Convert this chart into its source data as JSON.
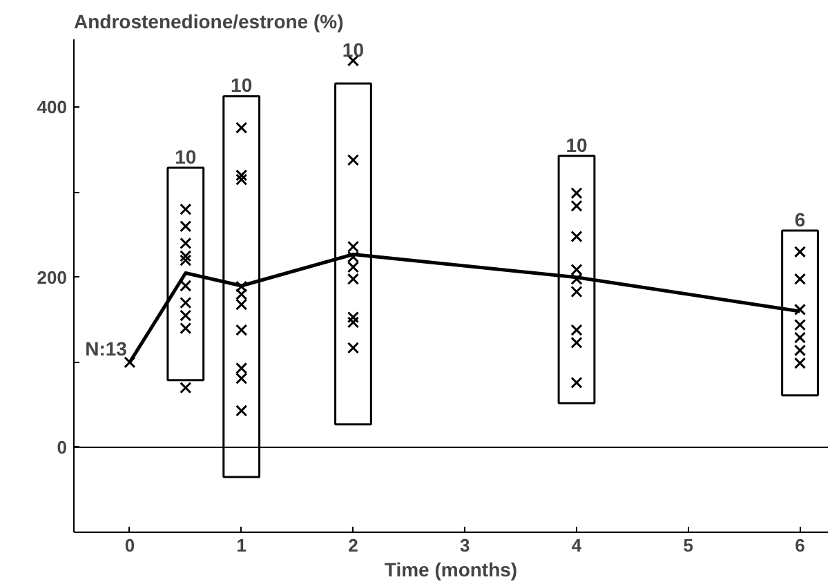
{
  "chart_data": {
    "type": "scatter",
    "ylabel": "Androstenedione/estrone (%)",
    "xlabel": "Time (months)",
    "xlim": [
      -0.5,
      6.25
    ],
    "xticks": [
      0,
      1,
      2,
      3,
      4,
      5,
      6
    ],
    "ylim": [
      -100,
      480
    ],
    "yticks": [
      {
        "value": -100,
        "label": null
      },
      0,
      {
        "value": 100,
        "label": null
      },
      200,
      {
        "value": 300,
        "label": null
      },
      400
    ],
    "grid": false,
    "series": [
      {
        "type": "bar",
        "color": "#000000",
        "x": [
          0.5,
          1,
          2,
          4,
          6
        ],
        "base": [
          79,
          -35,
          27,
          52,
          61
        ],
        "values": [
          250,
          448,
          401,
          291,
          194
        ]
      },
      {
        "marker": "cross",
        "color": "#000000",
        "x": [
          0,
          0.5,
          0.5,
          0.5,
          0.5,
          0.5,
          0.5,
          0.5,
          0.5,
          0.5,
          0.5,
          1,
          1,
          1,
          1,
          1,
          1,
          1,
          1,
          1,
          1,
          2,
          2,
          2,
          2,
          2,
          2,
          2,
          2,
          2,
          4,
          4,
          4,
          4,
          4,
          4,
          4,
          4,
          4,
          6,
          6,
          6,
          6,
          6,
          6,
          6
        ],
        "values": [
          100,
          280,
          260,
          240,
          225,
          220,
          190,
          170,
          155,
          140,
          70,
          376,
          320,
          315,
          189,
          180,
          168,
          138,
          93,
          81,
          43,
          455,
          338,
          236,
          224,
          212,
          198,
          153,
          147,
          117,
          299,
          284,
          248,
          209,
          198,
          183,
          138,
          123,
          76,
          230,
          198,
          162,
          144,
          129,
          114,
          99
        ]
      },
      {
        "type": "line",
        "marker": "none",
        "color": "#000000",
        "x": [
          0,
          0.5,
          1,
          2,
          4,
          6
        ],
        "values": [
          100,
          205,
          190,
          227,
          200,
          160
        ]
      }
    ],
    "ref_lines": [
      {
        "axis": "y",
        "value": 0,
        "label": null,
        "color": "#000000"
      }
    ],
    "annotations": [
      {
        "text": "N:13",
        "x": 0,
        "y": 100
      },
      {
        "text": "10",
        "x": 0.5,
        "y": 329
      },
      {
        "text": "10",
        "x": 1,
        "y": 413
      },
      {
        "text": "10",
        "x": 2,
        "y": 455
      },
      {
        "text": "10",
        "x": 4,
        "y": 343
      },
      {
        "text": "6",
        "x": 6,
        "y": 255
      }
    ]
  }
}
